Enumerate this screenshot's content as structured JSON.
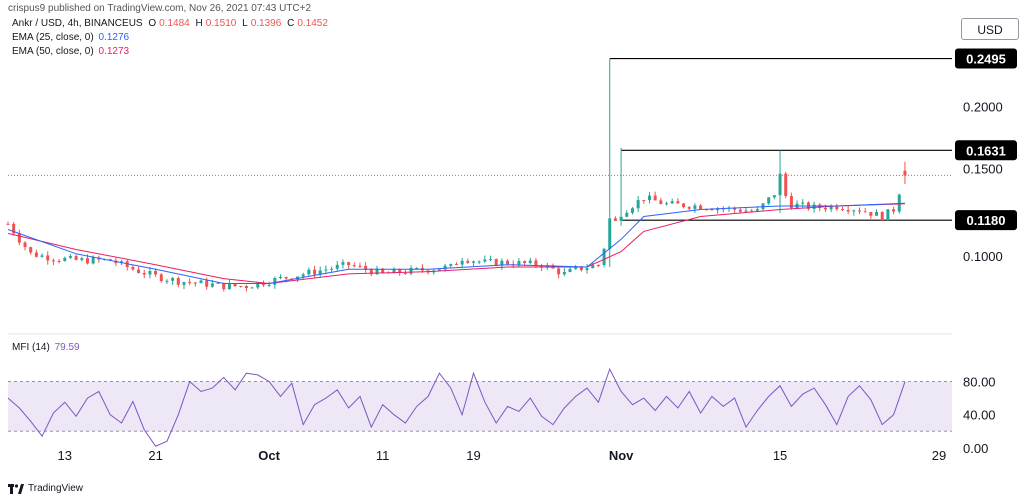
{
  "header": {
    "published_by": "crispus9 published on TradingView.com, Nov 26, 2021 07:43 UTC+2"
  },
  "legend": {
    "symbol": "Ankr / USD, 4h, BINANCEUS",
    "ohlc": {
      "o_label": "O",
      "o": "0.1484",
      "h_label": "H",
      "h": "0.1510",
      "l_label": "L",
      "l": "0.1396",
      "c_label": "C",
      "c": "0.1452"
    },
    "ema25": {
      "label": "EMA (25, close, 0)",
      "value": "0.1276"
    },
    "ema50": {
      "label": "EMA (50, close, 0)",
      "value": "0.1273"
    },
    "mfi": {
      "label": "MFI (14)",
      "value": "79.59"
    }
  },
  "currency_button": "USD",
  "footer": {
    "brand": "TradingView"
  },
  "colors": {
    "up": "#26a69a",
    "down": "#ef5350",
    "ema25": "#2962ff",
    "ema50": "#e91e63",
    "mfi_line": "#7e57c2",
    "mfi_band": "#ede7f6",
    "level_line": "#000000",
    "current_price_line": "#ef5350",
    "grid": "#f0f3fa",
    "axis_text": "#131722"
  },
  "chart_data": [
    {
      "type": "candlestick",
      "title": "Ankr / USD, 4h, BINANCEUS",
      "x_tick_labels": [
        "13",
        "21",
        "Oct",
        "11",
        "19",
        "Nov",
        "15",
        "29"
      ],
      "y_tick_labels": [
        "0.1000",
        "0.1500",
        "0.2000"
      ],
      "y_ticks": [
        0.1,
        0.15,
        0.2
      ],
      "ylim": [
        0.075,
        0.262
      ],
      "y_scale": "log",
      "grid": false,
      "last_close": 0.1452,
      "horizontal_levels": [
        {
          "value": 0.2495,
          "label": "0.2495",
          "x_start": "Oct 31"
        },
        {
          "value": 0.1631,
          "label": "0.1631",
          "x_start": "Nov 1"
        },
        {
          "value": 0.118,
          "label": "0.1180",
          "x_start": "Nov 1"
        }
      ],
      "close_path": [
        {
          "x": "Sep 8",
          "y": 0.116
        },
        {
          "x": "Sep 9",
          "y": 0.108
        },
        {
          "x": "Sep 10",
          "y": 0.101
        },
        {
          "x": "Sep 12",
          "y": 0.099
        },
        {
          "x": "Sep 14",
          "y": 0.098
        },
        {
          "x": "Sep 17",
          "y": 0.098
        },
        {
          "x": "Sep 19",
          "y": 0.094
        },
        {
          "x": "Sep 21",
          "y": 0.091
        },
        {
          "x": "Sep 23",
          "y": 0.089
        },
        {
          "x": "Sep 25",
          "y": 0.088
        },
        {
          "x": "Sep 27",
          "y": 0.087
        },
        {
          "x": "Sep 29",
          "y": 0.087
        },
        {
          "x": "Oct 1",
          "y": 0.089
        },
        {
          "x": "Oct 3",
          "y": 0.091
        },
        {
          "x": "Oct 6",
          "y": 0.094
        },
        {
          "x": "Oct 8",
          "y": 0.096
        },
        {
          "x": "Oct 11",
          "y": 0.092
        },
        {
          "x": "Oct 13",
          "y": 0.093
        },
        {
          "x": "Oct 15",
          "y": 0.094
        },
        {
          "x": "Oct 17",
          "y": 0.095
        },
        {
          "x": "Oct 18",
          "y": 0.099
        },
        {
          "x": "Oct 20",
          "y": 0.097
        },
        {
          "x": "Oct 22",
          "y": 0.097
        },
        {
          "x": "Oct 25",
          "y": 0.096
        },
        {
          "x": "Oct 27",
          "y": 0.092
        },
        {
          "x": "Oct 28",
          "y": 0.094
        },
        {
          "x": "Oct 30",
          "y": 0.096
        },
        {
          "x": "Oct 31",
          "y": 0.112
        },
        {
          "x": "Nov 1",
          "y": 0.122
        },
        {
          "x": "Nov 3",
          "y": 0.131
        },
        {
          "x": "Nov 5",
          "y": 0.127
        },
        {
          "x": "Nov 8",
          "y": 0.126
        },
        {
          "x": "Nov 11",
          "y": 0.124
        },
        {
          "x": "Nov 13",
          "y": 0.123
        },
        {
          "x": "Nov 15",
          "y": 0.137
        },
        {
          "x": "Nov 16",
          "y": 0.127
        },
        {
          "x": "Nov 18",
          "y": 0.125
        },
        {
          "x": "Nov 20",
          "y": 0.126
        },
        {
          "x": "Nov 22",
          "y": 0.124
        },
        {
          "x": "Nov 24",
          "y": 0.12
        },
        {
          "x": "Nov 25",
          "y": 0.124
        },
        {
          "x": "Nov 26",
          "y": 0.1452
        }
      ],
      "ema25_path": [
        {
          "x": "Sep 8",
          "y": 0.113
        },
        {
          "x": "Sep 14",
          "y": 0.101
        },
        {
          "x": "Sep 21",
          "y": 0.094
        },
        {
          "x": "Sep 27",
          "y": 0.088
        },
        {
          "x": "Oct 1",
          "y": 0.088
        },
        {
          "x": "Oct 8",
          "y": 0.094
        },
        {
          "x": "Oct 15",
          "y": 0.094
        },
        {
          "x": "Oct 22",
          "y": 0.096
        },
        {
          "x": "Oct 29",
          "y": 0.095
        },
        {
          "x": "Nov 1",
          "y": 0.108
        },
        {
          "x": "Nov 3",
          "y": 0.12
        },
        {
          "x": "Nov 8",
          "y": 0.124
        },
        {
          "x": "Nov 15",
          "y": 0.126
        },
        {
          "x": "Nov 20",
          "y": 0.126
        },
        {
          "x": "Nov 26",
          "y": 0.1276
        }
      ],
      "ema50_path": [
        {
          "x": "Sep 8",
          "y": 0.111
        },
        {
          "x": "Sep 14",
          "y": 0.103
        },
        {
          "x": "Sep 21",
          "y": 0.096
        },
        {
          "x": "Sep 27",
          "y": 0.09
        },
        {
          "x": "Oct 1",
          "y": 0.088
        },
        {
          "x": "Oct 8",
          "y": 0.092
        },
        {
          "x": "Oct 15",
          "y": 0.093
        },
        {
          "x": "Oct 22",
          "y": 0.095
        },
        {
          "x": "Oct 29",
          "y": 0.095
        },
        {
          "x": "Nov 1",
          "y": 0.102
        },
        {
          "x": "Nov 3",
          "y": 0.112
        },
        {
          "x": "Nov 8",
          "y": 0.12
        },
        {
          "x": "Nov 15",
          "y": 0.124
        },
        {
          "x": "Nov 20",
          "y": 0.126
        },
        {
          "x": "Nov 26",
          "y": 0.1273
        }
      ],
      "spikes": [
        {
          "x": "Oct 31",
          "high": 0.2495,
          "low": 0.095,
          "direction": "up"
        },
        {
          "x": "Nov 1",
          "high": 0.165,
          "low": 0.115,
          "direction": "down"
        },
        {
          "x": "Nov 15",
          "high": 0.163,
          "low": 0.122,
          "direction": "up"
        },
        {
          "x": "Nov 26",
          "high": 0.1547,
          "low": 0.123,
          "direction": "up"
        }
      ]
    },
    {
      "type": "line",
      "title": "MFI (14)",
      "y_tick_labels": [
        "0.00",
        "40.00",
        "80.00"
      ],
      "y_ticks": [
        0,
        40,
        80
      ],
      "ylim": [
        -5,
        118
      ],
      "band": [
        20,
        80
      ],
      "last_value": 79.59,
      "series": [
        {
          "values": [
            {
              "x": "Sep 8",
              "y": 60
            },
            {
              "x": "Sep 9",
              "y": 48
            },
            {
              "x": "Sep 10",
              "y": 32
            },
            {
              "x": "Sep 11",
              "y": 14
            },
            {
              "x": "Sep 12",
              "y": 42
            },
            {
              "x": "Sep 13",
              "y": 55
            },
            {
              "x": "Sep 14",
              "y": 38
            },
            {
              "x": "Sep 15",
              "y": 60
            },
            {
              "x": "Sep 16",
              "y": 68
            },
            {
              "x": "Sep 17",
              "y": 40
            },
            {
              "x": "Sep 18",
              "y": 30
            },
            {
              "x": "Sep 19",
              "y": 56
            },
            {
              "x": "Sep 20",
              "y": 22
            },
            {
              "x": "Sep 21",
              "y": 2
            },
            {
              "x": "Sep 22",
              "y": 8
            },
            {
              "x": "Sep 23",
              "y": 40
            },
            {
              "x": "Sep 24",
              "y": 80
            },
            {
              "x": "Sep 25",
              "y": 68
            },
            {
              "x": "Sep 26",
              "y": 72
            },
            {
              "x": "Sep 27",
              "y": 85
            },
            {
              "x": "Sep 28",
              "y": 70
            },
            {
              "x": "Sep 29",
              "y": 90
            },
            {
              "x": "Sep 30",
              "y": 88
            },
            {
              "x": "Oct 1",
              "y": 80
            },
            {
              "x": "Oct 2",
              "y": 62
            },
            {
              "x": "Oct 3",
              "y": 78
            },
            {
              "x": "Oct 4",
              "y": 28
            },
            {
              "x": "Oct 5",
              "y": 52
            },
            {
              "x": "Oct 6",
              "y": 60
            },
            {
              "x": "Oct 7",
              "y": 70
            },
            {
              "x": "Oct 8",
              "y": 48
            },
            {
              "x": "Oct 9",
              "y": 62
            },
            {
              "x": "Oct 10",
              "y": 25
            },
            {
              "x": "Oct 11",
              "y": 52
            },
            {
              "x": "Oct 12",
              "y": 40
            },
            {
              "x": "Oct 13",
              "y": 30
            },
            {
              "x": "Oct 14",
              "y": 50
            },
            {
              "x": "Oct 15",
              "y": 62
            },
            {
              "x": "Oct 16",
              "y": 90
            },
            {
              "x": "Oct 17",
              "y": 72
            },
            {
              "x": "Oct 18",
              "y": 40
            },
            {
              "x": "Oct 19",
              "y": 90
            },
            {
              "x": "Oct 20",
              "y": 55
            },
            {
              "x": "Oct 21",
              "y": 30
            },
            {
              "x": "Oct 22",
              "y": 50
            },
            {
              "x": "Oct 23",
              "y": 44
            },
            {
              "x": "Oct 24",
              "y": 60
            },
            {
              "x": "Oct 25",
              "y": 38
            },
            {
              "x": "Oct 26",
              "y": 28
            },
            {
              "x": "Oct 27",
              "y": 48
            },
            {
              "x": "Oct 28",
              "y": 62
            },
            {
              "x": "Oct 29",
              "y": 72
            },
            {
              "x": "Oct 30",
              "y": 55
            },
            {
              "x": "Oct 31",
              "y": 95
            },
            {
              "x": "Nov 1",
              "y": 68
            },
            {
              "x": "Nov 2",
              "y": 52
            },
            {
              "x": "Nov 3",
              "y": 60
            },
            {
              "x": "Nov 4",
              "y": 45
            },
            {
              "x": "Nov 5",
              "y": 62
            },
            {
              "x": "Nov 6",
              "y": 48
            },
            {
              "x": "Nov 7",
              "y": 68
            },
            {
              "x": "Nov 8",
              "y": 42
            },
            {
              "x": "Nov 9",
              "y": 62
            },
            {
              "x": "Nov 10",
              "y": 50
            },
            {
              "x": "Nov 11",
              "y": 60
            },
            {
              "x": "Nov 12",
              "y": 25
            },
            {
              "x": "Nov 13",
              "y": 45
            },
            {
              "x": "Nov 14",
              "y": 62
            },
            {
              "x": "Nov 15",
              "y": 75
            },
            {
              "x": "Nov 16",
              "y": 50
            },
            {
              "x": "Nov 17",
              "y": 65
            },
            {
              "x": "Nov 18",
              "y": 72
            },
            {
              "x": "Nov 19",
              "y": 52
            },
            {
              "x": "Nov 20",
              "y": 28
            },
            {
              "x": "Nov 21",
              "y": 62
            },
            {
              "x": "Nov 22",
              "y": 75
            },
            {
              "x": "Nov 23",
              "y": 58
            },
            {
              "x": "Nov 24",
              "y": 28
            },
            {
              "x": "Nov 25",
              "y": 40
            },
            {
              "x": "Nov 26",
              "y": 79.59
            }
          ]
        }
      ]
    }
  ]
}
